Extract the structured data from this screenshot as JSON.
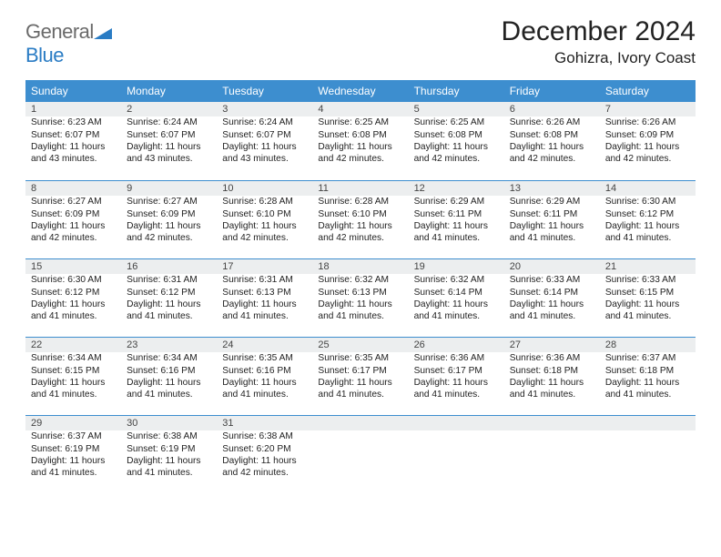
{
  "logo": {
    "general": "General",
    "blue": "Blue",
    "tri_color": "#2a7cc4",
    "general_color": "#6a6a6a"
  },
  "title": "December 2024",
  "location": "Gohizra, Ivory Coast",
  "header_bg": "#3d8ecf",
  "header_fg": "#ffffff",
  "band_bg": "#eceeef",
  "band_border": "#3d8ecf",
  "day_headers": [
    "Sunday",
    "Monday",
    "Tuesday",
    "Wednesday",
    "Thursday",
    "Friday",
    "Saturday"
  ],
  "weeks": [
    [
      {
        "n": "1",
        "sr": "6:23 AM",
        "ss": "6:07 PM",
        "dl": "11 hours and 43 minutes."
      },
      {
        "n": "2",
        "sr": "6:24 AM",
        "ss": "6:07 PM",
        "dl": "11 hours and 43 minutes."
      },
      {
        "n": "3",
        "sr": "6:24 AM",
        "ss": "6:07 PM",
        "dl": "11 hours and 43 minutes."
      },
      {
        "n": "4",
        "sr": "6:25 AM",
        "ss": "6:08 PM",
        "dl": "11 hours and 42 minutes."
      },
      {
        "n": "5",
        "sr": "6:25 AM",
        "ss": "6:08 PM",
        "dl": "11 hours and 42 minutes."
      },
      {
        "n": "6",
        "sr": "6:26 AM",
        "ss": "6:08 PM",
        "dl": "11 hours and 42 minutes."
      },
      {
        "n": "7",
        "sr": "6:26 AM",
        "ss": "6:09 PM",
        "dl": "11 hours and 42 minutes."
      }
    ],
    [
      {
        "n": "8",
        "sr": "6:27 AM",
        "ss": "6:09 PM",
        "dl": "11 hours and 42 minutes."
      },
      {
        "n": "9",
        "sr": "6:27 AM",
        "ss": "6:09 PM",
        "dl": "11 hours and 42 minutes."
      },
      {
        "n": "10",
        "sr": "6:28 AM",
        "ss": "6:10 PM",
        "dl": "11 hours and 42 minutes."
      },
      {
        "n": "11",
        "sr": "6:28 AM",
        "ss": "6:10 PM",
        "dl": "11 hours and 42 minutes."
      },
      {
        "n": "12",
        "sr": "6:29 AM",
        "ss": "6:11 PM",
        "dl": "11 hours and 41 minutes."
      },
      {
        "n": "13",
        "sr": "6:29 AM",
        "ss": "6:11 PM",
        "dl": "11 hours and 41 minutes."
      },
      {
        "n": "14",
        "sr": "6:30 AM",
        "ss": "6:12 PM",
        "dl": "11 hours and 41 minutes."
      }
    ],
    [
      {
        "n": "15",
        "sr": "6:30 AM",
        "ss": "6:12 PM",
        "dl": "11 hours and 41 minutes."
      },
      {
        "n": "16",
        "sr": "6:31 AM",
        "ss": "6:12 PM",
        "dl": "11 hours and 41 minutes."
      },
      {
        "n": "17",
        "sr": "6:31 AM",
        "ss": "6:13 PM",
        "dl": "11 hours and 41 minutes."
      },
      {
        "n": "18",
        "sr": "6:32 AM",
        "ss": "6:13 PM",
        "dl": "11 hours and 41 minutes."
      },
      {
        "n": "19",
        "sr": "6:32 AM",
        "ss": "6:14 PM",
        "dl": "11 hours and 41 minutes."
      },
      {
        "n": "20",
        "sr": "6:33 AM",
        "ss": "6:14 PM",
        "dl": "11 hours and 41 minutes."
      },
      {
        "n": "21",
        "sr": "6:33 AM",
        "ss": "6:15 PM",
        "dl": "11 hours and 41 minutes."
      }
    ],
    [
      {
        "n": "22",
        "sr": "6:34 AM",
        "ss": "6:15 PM",
        "dl": "11 hours and 41 minutes."
      },
      {
        "n": "23",
        "sr": "6:34 AM",
        "ss": "6:16 PM",
        "dl": "11 hours and 41 minutes."
      },
      {
        "n": "24",
        "sr": "6:35 AM",
        "ss": "6:16 PM",
        "dl": "11 hours and 41 minutes."
      },
      {
        "n": "25",
        "sr": "6:35 AM",
        "ss": "6:17 PM",
        "dl": "11 hours and 41 minutes."
      },
      {
        "n": "26",
        "sr": "6:36 AM",
        "ss": "6:17 PM",
        "dl": "11 hours and 41 minutes."
      },
      {
        "n": "27",
        "sr": "6:36 AM",
        "ss": "6:18 PM",
        "dl": "11 hours and 41 minutes."
      },
      {
        "n": "28",
        "sr": "6:37 AM",
        "ss": "6:18 PM",
        "dl": "11 hours and 41 minutes."
      }
    ],
    [
      {
        "n": "29",
        "sr": "6:37 AM",
        "ss": "6:19 PM",
        "dl": "11 hours and 41 minutes."
      },
      {
        "n": "30",
        "sr": "6:38 AM",
        "ss": "6:19 PM",
        "dl": "11 hours and 41 minutes."
      },
      {
        "n": "31",
        "sr": "6:38 AM",
        "ss": "6:20 PM",
        "dl": "11 hours and 42 minutes."
      },
      null,
      null,
      null,
      null
    ]
  ],
  "labels": {
    "sunrise": "Sunrise: ",
    "sunset": "Sunset: ",
    "daylight": "Daylight: "
  }
}
